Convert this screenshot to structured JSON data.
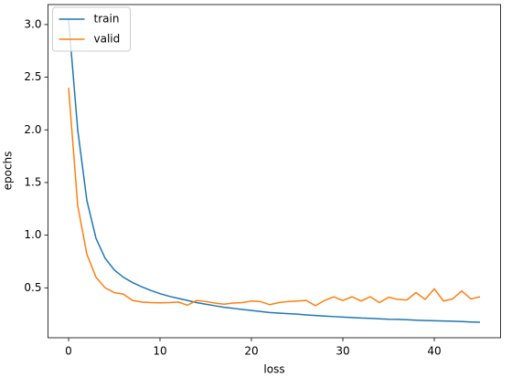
{
  "chart_data": {
    "type": "line",
    "x": [
      0,
      1,
      2,
      3,
      4,
      5,
      6,
      7,
      8,
      9,
      10,
      11,
      12,
      13,
      14,
      15,
      16,
      17,
      18,
      19,
      20,
      21,
      22,
      23,
      24,
      25,
      26,
      27,
      28,
      29,
      30,
      31,
      32,
      33,
      34,
      35,
      36,
      37,
      38,
      39,
      40,
      41,
      42,
      43,
      44,
      45
    ],
    "series": [
      {
        "name": "train",
        "color": "#1f77b4",
        "values": [
          3.05,
          2.0,
          1.33,
          0.97,
          0.78,
          0.67,
          0.6,
          0.55,
          0.51,
          0.475,
          0.445,
          0.42,
          0.4,
          0.38,
          0.36,
          0.345,
          0.33,
          0.315,
          0.305,
          0.295,
          0.285,
          0.275,
          0.265,
          0.26,
          0.255,
          0.25,
          0.243,
          0.237,
          0.232,
          0.227,
          0.222,
          0.218,
          0.213,
          0.21,
          0.206,
          0.202,
          0.2,
          0.197,
          0.193,
          0.19,
          0.187,
          0.185,
          0.183,
          0.18,
          0.176,
          0.173
        ]
      },
      {
        "name": "valid",
        "color": "#ff7f0e",
        "values": [
          2.4,
          1.28,
          0.82,
          0.6,
          0.5,
          0.455,
          0.44,
          0.38,
          0.365,
          0.36,
          0.358,
          0.36,
          0.365,
          0.335,
          0.38,
          0.37,
          0.355,
          0.345,
          0.355,
          0.36,
          0.375,
          0.37,
          0.34,
          0.36,
          0.37,
          0.375,
          0.38,
          0.33,
          0.38,
          0.415,
          0.38,
          0.415,
          0.375,
          0.415,
          0.36,
          0.41,
          0.39,
          0.385,
          0.455,
          0.39,
          0.49,
          0.375,
          0.395,
          0.47,
          0.395,
          0.415
        ]
      }
    ],
    "xlabel": "loss",
    "ylabel": "epochs",
    "xlim": [
      -2.25,
      47.25
    ],
    "xticks": [
      0,
      10,
      20,
      30,
      40
    ],
    "ylim": [
      0.026,
      3.19
    ],
    "yticks": [
      0.5,
      {
        "value": 1.0,
        "label": "1.0"
      },
      1.5,
      {
        "value": 2.0,
        "label": "2.0"
      },
      2.5,
      {
        "value": 3.0,
        "label": "3.0"
      }
    ],
    "legend": "upper left"
  }
}
